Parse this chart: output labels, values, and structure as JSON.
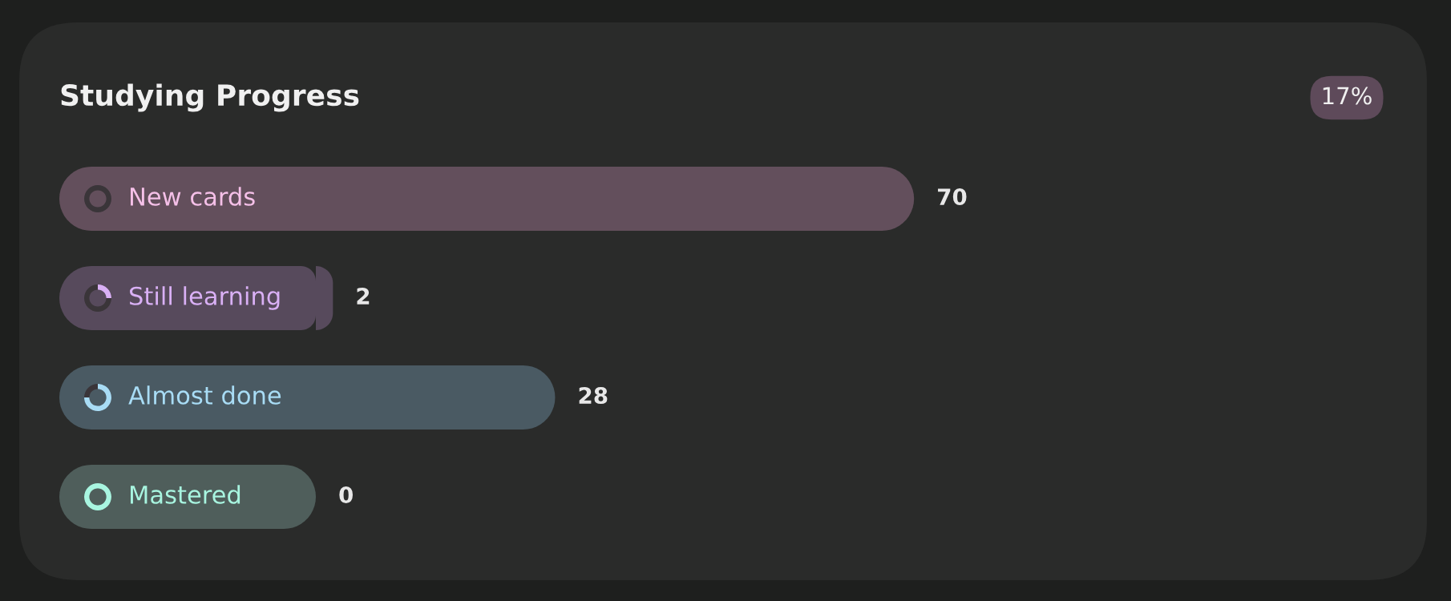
{
  "chart_data": {
    "type": "bar",
    "orientation": "horizontal",
    "title": "Studying Progress",
    "annotations": [
      "17%"
    ],
    "categories": [
      "New cards",
      "Still learning",
      "Almost done",
      "Mastered"
    ],
    "values": [
      70,
      2,
      28,
      0
    ],
    "colors": [
      "#634f5c",
      "#574a5c",
      "#4a5a63",
      "#4f5e5b"
    ],
    "data_labels": true
  }
}
